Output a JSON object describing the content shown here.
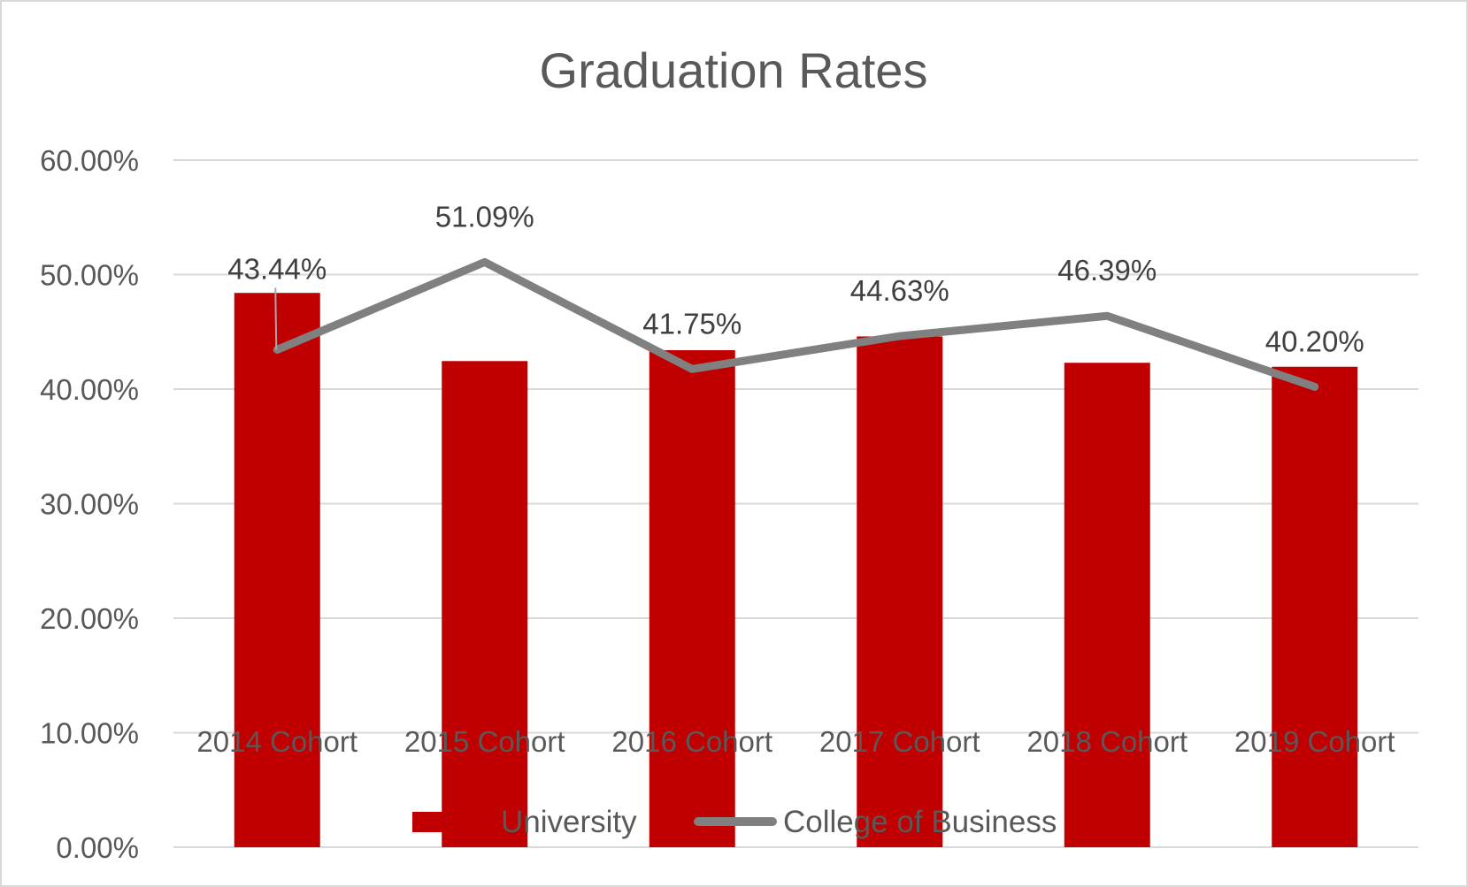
{
  "chart_data": {
    "type": "bar",
    "title": "Graduation Rates",
    "categories": [
      "2014 Cohort",
      "2015 Cohort",
      "2016 Cohort",
      "2017 Cohort",
      "2018 Cohort",
      "2019 Cohort"
    ],
    "ylim": [
      0,
      60
    ],
    "yticks": [
      "0.00%",
      "10.00%",
      "20.00%",
      "30.00%",
      "40.00%",
      "50.00%",
      "60.00%"
    ],
    "grid": true,
    "legend_position": "bottom",
    "series": [
      {
        "name": "University",
        "type": "bar",
        "color": "#C00000",
        "values": [
          48.4,
          42.45,
          43.4,
          44.6,
          42.3,
          41.95
        ]
      },
      {
        "name": "College of Business",
        "type": "line",
        "color": "#808080",
        "values": [
          43.44,
          51.09,
          41.75,
          44.63,
          46.39,
          40.2
        ],
        "labels": [
          "43.44%",
          "51.09%",
          "41.75%",
          "44.63%",
          "46.39%",
          "40.20%"
        ]
      }
    ]
  }
}
